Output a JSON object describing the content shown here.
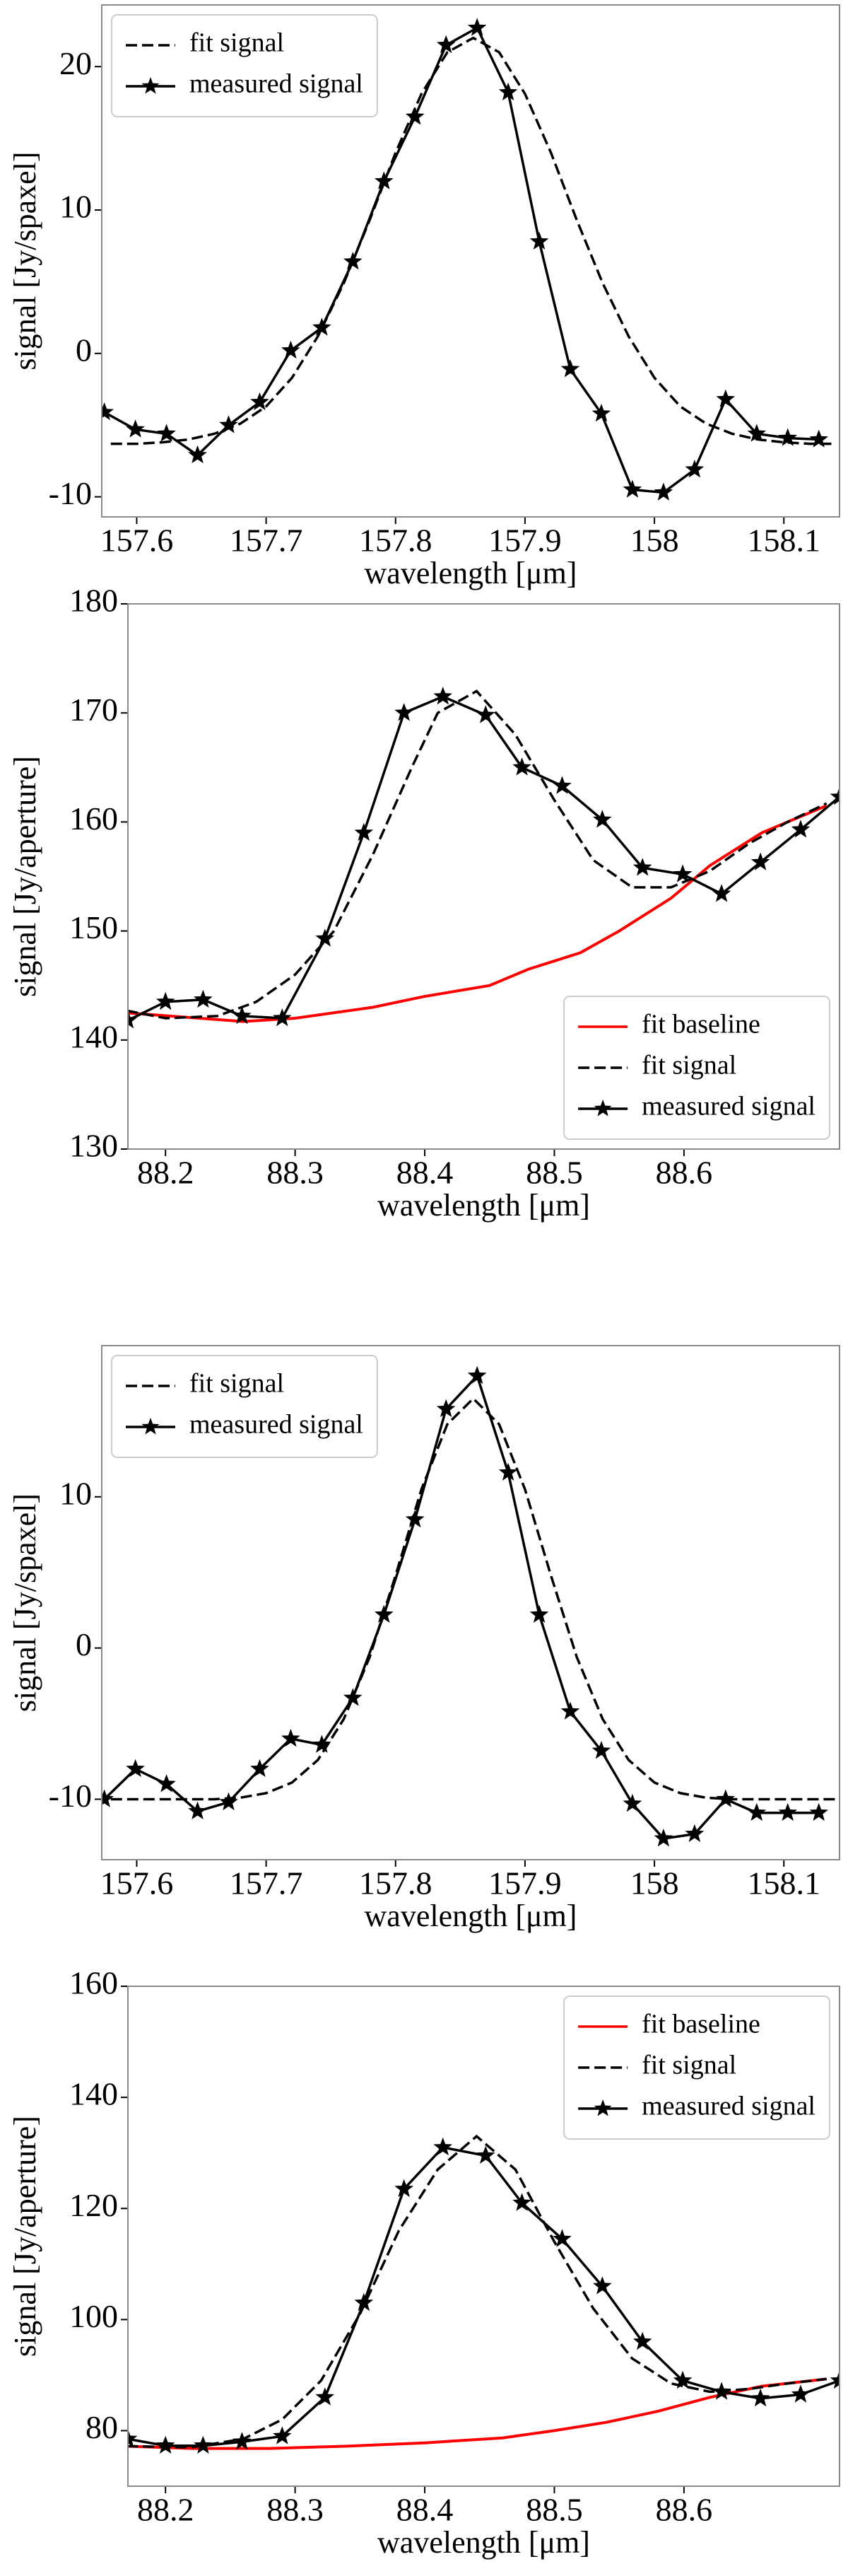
{
  "chart_data": [
    {
      "type": "line",
      "xlabel": "wavelength [μm]",
      "ylabel": "signal [Jy/spaxel]",
      "xlim": [
        157.573,
        158.143
      ],
      "ylim": [
        -11.4,
        24.3
      ],
      "xticks": [
        157.6,
        157.7,
        157.8,
        157.9,
        158.0,
        158.1
      ],
      "yticks": [
        -10,
        0,
        10,
        20
      ],
      "legend": "upper left",
      "series": [
        {
          "name": "fit signal",
          "color": "#000000",
          "linestyle": "dashed",
          "x": [
            157.58,
            157.6,
            157.62,
            157.64,
            157.66,
            157.68,
            157.7,
            157.72,
            157.74,
            157.76,
            157.78,
            157.8,
            157.82,
            157.84,
            157.86,
            157.88,
            157.9,
            157.92,
            157.94,
            157.96,
            157.98,
            158.0,
            158.02,
            158.04,
            158.06,
            158.08,
            158.1,
            158.12,
            158.14
          ],
          "values": [
            -6.3,
            -6.3,
            -6.2,
            -6.0,
            -5.6,
            -4.9,
            -3.7,
            -1.7,
            1.2,
            4.9,
            9.3,
            14.0,
            18.1,
            21.0,
            22.0,
            21.0,
            18.1,
            14.0,
            9.3,
            4.9,
            1.2,
            -1.7,
            -3.7,
            -4.9,
            -5.6,
            -6.0,
            -6.2,
            -6.3,
            -6.3
          ]
        },
        {
          "name": "measured signal",
          "color": "#000000",
          "linestyle": "solid",
          "marker": "star",
          "x": [
            157.575,
            157.599,
            157.623,
            157.647,
            157.671,
            157.695,
            157.719,
            157.743,
            157.767,
            157.791,
            157.815,
            157.839,
            157.863,
            157.887,
            157.911,
            157.935,
            157.959,
            157.983,
            158.007,
            158.031,
            158.055,
            158.079,
            158.103,
            158.127
          ],
          "values": [
            -4.1,
            -5.3,
            -5.6,
            -7.1,
            -5.0,
            -3.4,
            0.2,
            1.8,
            6.4,
            12.0,
            16.5,
            21.5,
            22.7,
            18.2,
            7.8,
            -1.1,
            -4.2,
            -9.5,
            -9.7,
            -8.1,
            -3.2,
            -5.6,
            -5.9,
            -6.0
          ]
        }
      ]
    },
    {
      "type": "line",
      "xlabel": "wavelength [μm]",
      "ylabel": "signal [Jy/aperture]",
      "xlim": [
        88.171,
        88.72
      ],
      "ylim": [
        130,
        180
      ],
      "xticks": [
        88.2,
        88.3,
        88.4,
        88.5,
        88.6
      ],
      "yticks": [
        130,
        140,
        150,
        160,
        170,
        180
      ],
      "legend": "lower right",
      "series": [
        {
          "name": "fit baseline",
          "color": "#ff0000",
          "linestyle": "solid",
          "x": [
            88.17,
            88.26,
            88.3,
            88.36,
            88.4,
            88.45,
            88.48,
            88.52,
            88.55,
            88.59,
            88.62,
            88.66,
            88.71
          ],
          "values": [
            142.5,
            141.7,
            142.0,
            143.0,
            144.0,
            145.0,
            146.5,
            148.0,
            150.0,
            153.0,
            156.0,
            159.0,
            161.5
          ]
        },
        {
          "name": "fit signal",
          "color": "#000000",
          "linestyle": "dashed",
          "x": [
            88.17,
            88.2,
            88.24,
            88.27,
            88.3,
            88.33,
            88.36,
            88.39,
            88.41,
            88.44,
            88.47,
            88.5,
            88.53,
            88.56,
            88.59,
            88.62,
            88.65,
            88.68,
            88.71
          ],
          "values": [
            142.7,
            142.0,
            142.2,
            143.5,
            146.0,
            150.0,
            157.0,
            165.0,
            170.0,
            172.0,
            168.0,
            162.0,
            156.5,
            154.0,
            154.0,
            155.5,
            158.0,
            160.0,
            161.7
          ]
        },
        {
          "name": "measured signal",
          "color": "#000000",
          "linestyle": "solid",
          "marker": "star",
          "x": [
            88.171,
            88.2,
            88.229,
            88.259,
            88.29,
            88.323,
            88.353,
            88.384,
            88.414,
            88.447,
            88.475,
            88.506,
            88.537,
            88.568,
            88.599,
            88.629,
            88.659,
            88.69,
            88.72
          ],
          "values": [
            141.8,
            143.5,
            143.7,
            142.2,
            142.0,
            149.3,
            159.0,
            170.0,
            171.5,
            169.8,
            165.0,
            163.3,
            160.2,
            155.8,
            155.2,
            153.4,
            156.3,
            159.3,
            162.3
          ]
        }
      ]
    },
    {
      "type": "line",
      "xlabel": "wavelength [μm]",
      "ylabel": "signal [Jy/spaxel]",
      "xlim": [
        157.573,
        158.143
      ],
      "ylim": [
        -14,
        20
      ],
      "xticks": [
        157.6,
        157.7,
        157.8,
        157.9,
        158.0,
        158.1
      ],
      "yticks": [
        -10,
        0,
        10
      ],
      "legend": "upper left",
      "series": [
        {
          "name": "fit signal",
          "color": "#000000",
          "linestyle": "dashed",
          "x": [
            157.58,
            157.6,
            157.62,
            157.64,
            157.66,
            157.68,
            157.7,
            157.72,
            157.74,
            157.76,
            157.78,
            157.8,
            157.82,
            157.84,
            157.86,
            157.88,
            157.9,
            157.92,
            157.94,
            157.96,
            157.98,
            158.0,
            158.02,
            158.04,
            158.06,
            158.08,
            158.1,
            158.12,
            158.14
          ],
          "values": [
            -10,
            -10,
            -10,
            -10,
            -10,
            -9.9,
            -9.6,
            -8.9,
            -7.4,
            -4.7,
            -0.6,
            4.8,
            10.5,
            14.8,
            16.5,
            14.8,
            10.5,
            4.8,
            -0.6,
            -4.7,
            -7.4,
            -8.9,
            -9.6,
            -9.9,
            -10,
            -10,
            -10,
            -10,
            -10
          ]
        },
        {
          "name": "measured signal",
          "color": "#000000",
          "linestyle": "solid",
          "marker": "star",
          "x": [
            157.575,
            157.599,
            157.623,
            157.647,
            157.671,
            157.695,
            157.719,
            157.743,
            157.767,
            157.791,
            157.815,
            157.839,
            157.863,
            157.887,
            157.911,
            157.935,
            157.959,
            157.983,
            158.007,
            158.031,
            158.055,
            158.079,
            158.103,
            158.127
          ],
          "values": [
            -10,
            -8.0,
            -9.0,
            -10.8,
            -10.2,
            -8.0,
            -6.0,
            -6.4,
            -3.3,
            2.2,
            8.5,
            15.8,
            18.0,
            11.6,
            2.2,
            -4.2,
            -6.8,
            -10.3,
            -12.6,
            -12.3,
            -10.0,
            -10.9,
            -10.9,
            -10.9
          ]
        }
      ]
    },
    {
      "type": "line",
      "xlabel": "wavelength [μm]",
      "ylabel": "signal [Jy/aperture]",
      "xlim": [
        88.171,
        88.72
      ],
      "ylim": [
        70,
        160
      ],
      "xticks": [
        88.2,
        88.3,
        88.4,
        88.5,
        88.6
      ],
      "yticks": [
        80,
        100,
        120,
        140,
        160
      ],
      "legend": "upper right",
      "series": [
        {
          "name": "fit baseline",
          "color": "#ff0000",
          "linestyle": "solid",
          "x": [
            88.17,
            88.22,
            88.28,
            88.34,
            88.4,
            88.46,
            88.5,
            88.54,
            88.58,
            88.62,
            88.66,
            88.71
          ],
          "values": [
            77.2,
            76.8,
            76.8,
            77.2,
            77.8,
            78.7,
            80.0,
            81.5,
            83.5,
            86.0,
            88.0,
            89.3
          ]
        },
        {
          "name": "fit signal",
          "color": "#000000",
          "linestyle": "dashed",
          "x": [
            88.17,
            88.22,
            88.26,
            88.29,
            88.32,
            88.35,
            88.38,
            88.41,
            88.44,
            88.47,
            88.5,
            88.53,
            88.56,
            88.59,
            88.62,
            88.65,
            88.68,
            88.71
          ],
          "values": [
            77.2,
            77.0,
            78.5,
            82.0,
            89.0,
            101.0,
            116.0,
            127.0,
            133.0,
            127.0,
            114.0,
            102.0,
            93.0,
            88.5,
            87.0,
            87.5,
            88.5,
            89.3
          ]
        },
        {
          "name": "measured signal",
          "color": "#000000",
          "linestyle": "solid",
          "marker": "star",
          "x": [
            88.171,
            88.2,
            88.229,
            88.259,
            88.29,
            88.323,
            88.353,
            88.384,
            88.414,
            88.447,
            88.475,
            88.506,
            88.537,
            88.568,
            88.599,
            88.629,
            88.659,
            88.69,
            88.72
          ],
          "values": [
            78.5,
            77.3,
            77.3,
            78.0,
            79.0,
            86.0,
            103.0,
            123.5,
            131.0,
            129.5,
            121.0,
            114.5,
            106.0,
            96.0,
            89.0,
            87.0,
            85.8,
            86.5,
            89.0
          ]
        }
      ]
    }
  ]
}
